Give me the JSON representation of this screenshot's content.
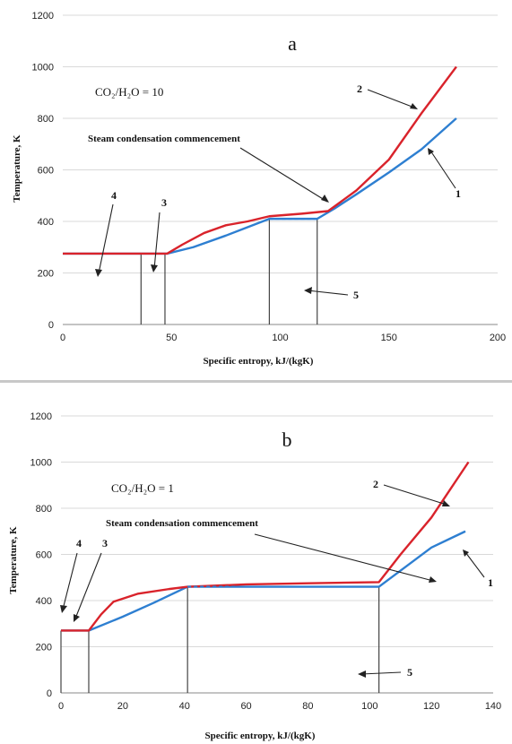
{
  "colors": {
    "series_1": "#2e7fd1",
    "series_2": "#d9232b",
    "grid": "#d9d9d9",
    "dashed": "#2e7fd1"
  },
  "chart_data": [
    {
      "type": "line",
      "panel_label": "a",
      "ratio_label": "CO₂/H₂O = 10",
      "annotation": "Steam condensation commencement",
      "xlabel": "Specific entropy, kJ/(kgK)",
      "ylabel": "Temperature, K",
      "xlim": [
        0,
        200
      ],
      "ylim": [
        0,
        1200
      ],
      "xticks": [
        0,
        50,
        100,
        150,
        200
      ],
      "yticks": [
        0,
        200,
        400,
        600,
        800,
        1000,
        1200
      ],
      "grid": true,
      "series": [
        {
          "label": "1",
          "color": "#2e7fd1",
          "x": [
            0,
            48,
            60,
            75,
            95,
            105,
            117,
            125,
            135,
            150,
            165,
            181
          ],
          "y": [
            275,
            275,
            300,
            345,
            410,
            410,
            410,
            450,
            505,
            590,
            680,
            800
          ]
        },
        {
          "label": "2",
          "color": "#d9232b",
          "x": [
            0,
            48,
            55,
            65,
            75,
            85,
            95,
            110,
            122,
            135,
            150,
            165,
            181
          ],
          "y": [
            275,
            275,
            310,
            355,
            385,
            400,
            420,
            430,
            440,
            520,
            640,
            820,
            1000
          ]
        }
      ],
      "dashed_segment": {
        "x": [
          95,
          117
        ],
        "y": [
          410,
          410
        ]
      },
      "vertical_lines_x": [
        36,
        47,
        95,
        117
      ],
      "labels": [
        "1",
        "2",
        "3",
        "4",
        "5"
      ]
    },
    {
      "type": "line",
      "panel_label": "b",
      "ratio_label": "CO₂/H₂O = 1",
      "annotation": "Steam condensation commencement",
      "xlabel": "Specific entropy, kJ/(kgK)",
      "ylabel": "Temperature, K",
      "xlim": [
        0,
        140
      ],
      "ylim": [
        0,
        1200
      ],
      "xticks": [
        0,
        20,
        40,
        60,
        80,
        100,
        120,
        140
      ],
      "yticks": [
        0,
        200,
        400,
        600,
        800,
        1000,
        1200
      ],
      "grid": true,
      "series": [
        {
          "label": "1",
          "color": "#2e7fd1",
          "x": [
            0,
            9,
            20,
            30,
            41,
            60,
            80,
            103,
            110,
            120,
            131
          ],
          "y": [
            270,
            270,
            330,
            390,
            460,
            460,
            460,
            460,
            530,
            630,
            700
          ]
        },
        {
          "label": "2",
          "color": "#d9232b",
          "x": [
            0,
            9,
            13,
            17,
            25,
            35,
            41,
            60,
            80,
            103,
            110,
            120,
            125,
            132
          ],
          "y": [
            270,
            270,
            340,
            395,
            430,
            450,
            460,
            470,
            475,
            480,
            600,
            760,
            860,
            1000
          ]
        }
      ],
      "dashed_segment": {
        "x": [
          41,
          103
        ],
        "y": [
          460,
          460
        ]
      },
      "vertical_lines_x": [
        0,
        9,
        41,
        103
      ],
      "labels": [
        "1",
        "2",
        "3",
        "4",
        "5"
      ]
    }
  ]
}
